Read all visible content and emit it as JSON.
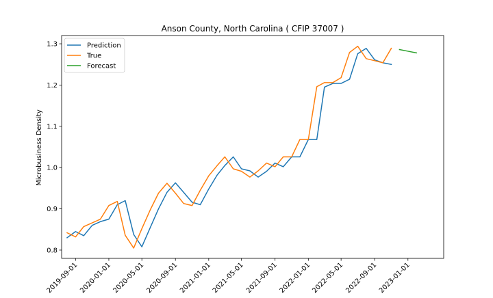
{
  "chart_data": {
    "type": "line",
    "title": "Anson County, North Carolina ( CFIP 37007 )",
    "xlabel": "",
    "ylabel": "Microbusiness Density",
    "x_ticks": [
      "2019-09-01",
      "2020-01-01",
      "2020-05-01",
      "2020-09-01",
      "2021-01-01",
      "2021-05-01",
      "2021-09-01",
      "2022-01-01",
      "2022-05-01",
      "2022-09-01",
      "2023-01-01"
    ],
    "y_ticks": [
      "0.8",
      "0.9",
      "1.0",
      "1.1",
      "1.2",
      "1.3"
    ],
    "xlim": [
      "2019-07-12",
      "2023-05-12"
    ],
    "ylim": [
      0.78,
      1.32
    ],
    "grid": false,
    "legend_position": "top-left",
    "series": [
      {
        "name": "Prediction",
        "color": "#1f77b4",
        "points": [
          [
            "2019-08-01",
            0.83
          ],
          [
            "2019-09-01",
            0.845
          ],
          [
            "2019-10-01",
            0.835
          ],
          [
            "2019-11-01",
            0.86
          ],
          [
            "2019-12-01",
            0.869
          ],
          [
            "2020-01-01",
            0.875
          ],
          [
            "2020-02-01",
            0.91
          ],
          [
            "2020-03-01",
            0.92
          ],
          [
            "2020-04-01",
            0.838
          ],
          [
            "2020-05-01",
            0.808
          ],
          [
            "2020-06-01",
            0.855
          ],
          [
            "2020-07-01",
            0.9
          ],
          [
            "2020-08-01",
            0.94
          ],
          [
            "2020-09-01",
            0.963
          ],
          [
            "2020-10-01",
            0.94
          ],
          [
            "2020-11-01",
            0.916
          ],
          [
            "2020-12-01",
            0.91
          ],
          [
            "2021-01-01",
            0.948
          ],
          [
            "2021-02-01",
            0.982
          ],
          [
            "2021-03-01",
            1.005
          ],
          [
            "2021-04-01",
            1.026
          ],
          [
            "2021-05-01",
            0.997
          ],
          [
            "2021-06-01",
            0.992
          ],
          [
            "2021-07-01",
            0.977
          ],
          [
            "2021-08-01",
            0.991
          ],
          [
            "2021-09-01",
            1.011
          ],
          [
            "2021-10-01",
            1.002
          ],
          [
            "2021-11-01",
            1.026
          ],
          [
            "2021-12-01",
            1.026
          ],
          [
            "2022-01-01",
            1.068
          ],
          [
            "2022-02-01",
            1.068
          ],
          [
            "2022-03-01",
            1.195
          ],
          [
            "2022-04-01",
            1.204
          ],
          [
            "2022-05-01",
            1.204
          ],
          [
            "2022-06-01",
            1.214
          ],
          [
            "2022-07-01",
            1.276
          ],
          [
            "2022-08-01",
            1.289
          ],
          [
            "2022-09-01",
            1.261
          ],
          [
            "2022-10-01",
            1.254
          ],
          [
            "2022-11-01",
            1.25
          ]
        ]
      },
      {
        "name": "True",
        "color": "#ff7f0e",
        "points": [
          [
            "2019-08-01",
            0.842
          ],
          [
            "2019-09-01",
            0.832
          ],
          [
            "2019-10-01",
            0.857
          ],
          [
            "2019-11-01",
            0.866
          ],
          [
            "2019-12-01",
            0.875
          ],
          [
            "2020-01-01",
            0.908
          ],
          [
            "2020-02-01",
            0.918
          ],
          [
            "2020-03-01",
            0.836
          ],
          [
            "2020-04-01",
            0.805
          ],
          [
            "2020-05-01",
            0.852
          ],
          [
            "2020-06-01",
            0.898
          ],
          [
            "2020-07-01",
            0.938
          ],
          [
            "2020-08-01",
            0.962
          ],
          [
            "2020-09-01",
            0.938
          ],
          [
            "2020-10-01",
            0.913
          ],
          [
            "2020-11-01",
            0.908
          ],
          [
            "2020-12-01",
            0.945
          ],
          [
            "2021-01-01",
            0.98
          ],
          [
            "2021-02-01",
            1.005
          ],
          [
            "2021-03-01",
            1.026
          ],
          [
            "2021-04-01",
            0.997
          ],
          [
            "2021-05-01",
            0.991
          ],
          [
            "2021-06-01",
            0.977
          ],
          [
            "2021-07-01",
            0.992
          ],
          [
            "2021-08-01",
            1.011
          ],
          [
            "2021-09-01",
            1.002
          ],
          [
            "2021-10-01",
            1.026
          ],
          [
            "2021-11-01",
            1.026
          ],
          [
            "2021-12-01",
            1.068
          ],
          [
            "2022-01-01",
            1.068
          ],
          [
            "2022-02-01",
            1.196
          ],
          [
            "2022-03-01",
            1.206
          ],
          [
            "2022-04-01",
            1.206
          ],
          [
            "2022-05-01",
            1.218
          ],
          [
            "2022-06-01",
            1.279
          ],
          [
            "2022-07-01",
            1.294
          ],
          [
            "2022-08-01",
            1.264
          ],
          [
            "2022-09-01",
            1.259
          ],
          [
            "2022-10-01",
            1.254
          ],
          [
            "2022-11-01",
            1.289
          ]
        ]
      },
      {
        "name": "Forecast",
        "color": "#2ca02c",
        "points": [
          [
            "2022-12-01",
            1.286
          ],
          [
            "2023-01-01",
            1.282
          ],
          [
            "2023-02-01",
            1.278
          ]
        ]
      }
    ]
  }
}
